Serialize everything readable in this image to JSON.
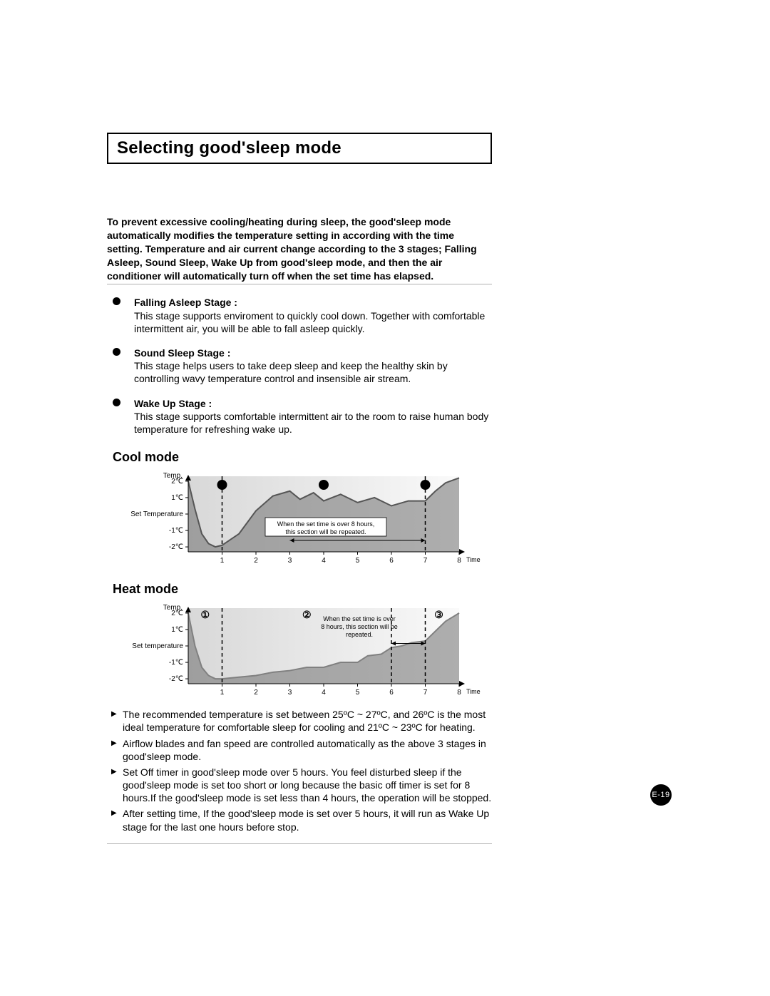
{
  "title": "Selecting good'sleep mode",
  "intro": "To prevent excessive cooling/heating during sleep, the good'sleep mode automatically modifies the temperature setting in according with the time setting. Temperature and air current change according to the 3 stages; Falling Asleep, Sound Sleep, Wake Up from good'sleep mode, and then the air conditioner will automatically turn off when the set time has elapsed.",
  "stages": [
    {
      "title": "Falling Asleep Stage :",
      "body": "This stage supports enviroment to quickly cool down. Together with comfortable intermittent air, you will be able to fall asleep quickly."
    },
    {
      "title": "Sound Sleep Stage :",
      "body": "This stage helps users to take deep sleep and keep the healthy skin by controlling wavy temperature control and insensible air stream."
    },
    {
      "title": "Wake Up Stage :",
      "body": "This stage supports comfortable intermittent air to the room to raise human body temperature for refreshing wake up."
    }
  ],
  "cool_mode": {
    "heading": "Cool mode",
    "type": "line",
    "y_axis_title": "Temp.",
    "y_ticks": [
      "2℃",
      "1℃",
      "Set Temperature",
      "-1℃",
      "-2℃"
    ],
    "x_axis_title": "Time(hr.)",
    "x_ticks": [
      "1",
      "2",
      "3",
      "4",
      "5",
      "6",
      "7",
      "8"
    ],
    "annotation": "When the set time is over 8 hours, this section will be repeated.",
    "line_color": "#555555",
    "background_fill": "#6f6f6f",
    "stage_bounds": [
      1,
      7
    ],
    "curve": [
      {
        "x": 0.0,
        "y": 2.0
      },
      {
        "x": 0.2,
        "y": 0.3
      },
      {
        "x": 0.4,
        "y": -1.2
      },
      {
        "x": 0.6,
        "y": -1.8
      },
      {
        "x": 0.8,
        "y": -2.0
      },
      {
        "x": 1.0,
        "y": -1.9
      },
      {
        "x": 1.5,
        "y": -1.2
      },
      {
        "x": 2.0,
        "y": 0.2
      },
      {
        "x": 2.5,
        "y": 1.1
      },
      {
        "x": 3.0,
        "y": 1.4
      },
      {
        "x": 3.3,
        "y": 0.9
      },
      {
        "x": 3.7,
        "y": 1.3
      },
      {
        "x": 4.0,
        "y": 0.8
      },
      {
        "x": 4.5,
        "y": 1.2
      },
      {
        "x": 5.0,
        "y": 0.7
      },
      {
        "x": 5.5,
        "y": 1.0
      },
      {
        "x": 6.0,
        "y": 0.5
      },
      {
        "x": 6.5,
        "y": 0.8
      },
      {
        "x": 7.0,
        "y": 0.8
      },
      {
        "x": 7.3,
        "y": 1.4
      },
      {
        "x": 7.6,
        "y": 1.9
      },
      {
        "x": 8.0,
        "y": 2.2
      }
    ],
    "markers": [
      1.0,
      4.0,
      7.0
    ]
  },
  "heat_mode": {
    "heading": "Heat mode",
    "type": "line",
    "y_axis_title": "Temp.",
    "y_ticks": [
      "2℃",
      "1℃",
      "Set temperature",
      "-1℃",
      "-2℃"
    ],
    "x_axis_title": "Time(hr.)",
    "x_ticks": [
      "1",
      "2",
      "3",
      "4",
      "5",
      "6",
      "7",
      "8"
    ],
    "annotation": "When the set time is over 8 hours, this section will be repeated.",
    "line_color": "#808080",
    "background_fill": "#6f6f6f",
    "stage_bounds": [
      1,
      6,
      7
    ],
    "stage_labels": [
      "①",
      "②",
      "③"
    ],
    "curve": [
      {
        "x": 0.0,
        "y": 2.0
      },
      {
        "x": 0.2,
        "y": 0.0
      },
      {
        "x": 0.4,
        "y": -1.3
      },
      {
        "x": 0.6,
        "y": -1.8
      },
      {
        "x": 0.8,
        "y": -2.0
      },
      {
        "x": 1.0,
        "y": -2.0
      },
      {
        "x": 1.5,
        "y": -1.9
      },
      {
        "x": 2.0,
        "y": -1.8
      },
      {
        "x": 2.5,
        "y": -1.6
      },
      {
        "x": 3.0,
        "y": -1.5
      },
      {
        "x": 3.5,
        "y": -1.3
      },
      {
        "x": 4.0,
        "y": -1.3
      },
      {
        "x": 4.5,
        "y": -1.0
      },
      {
        "x": 5.0,
        "y": -1.0
      },
      {
        "x": 5.3,
        "y": -0.6
      },
      {
        "x": 5.7,
        "y": -0.5
      },
      {
        "x": 6.0,
        "y": -0.1
      },
      {
        "x": 6.3,
        "y": 0.0
      },
      {
        "x": 6.6,
        "y": 0.2
      },
      {
        "x": 7.0,
        "y": 0.3
      },
      {
        "x": 7.3,
        "y": 0.9
      },
      {
        "x": 7.6,
        "y": 1.5
      },
      {
        "x": 8.0,
        "y": 2.0
      }
    ]
  },
  "notes": [
    "The recommended temperature is set between 25ºC ~ 27ºC, and 26ºC is the most ideal temperature for comfortable sleep for cooling and 21ºC ~ 23ºC for heating.",
    "Airflow blades and fan speed are controlled automatically as the above 3 stages in good'sleep mode.",
    "Set Off timer in good'sleep mode over 5 hours. You feel disturbed sleep if the good'sleep mode is set too short or long because the basic off timer is set for 8 hours.If the good'sleep mode is set less than 4 hours, the operation will be stopped.",
    "After setting time, If the good'sleep mode is set over 5 hours, it will run as Wake Up stage for the last one hours before stop."
  ],
  "page_number": "E-19"
}
